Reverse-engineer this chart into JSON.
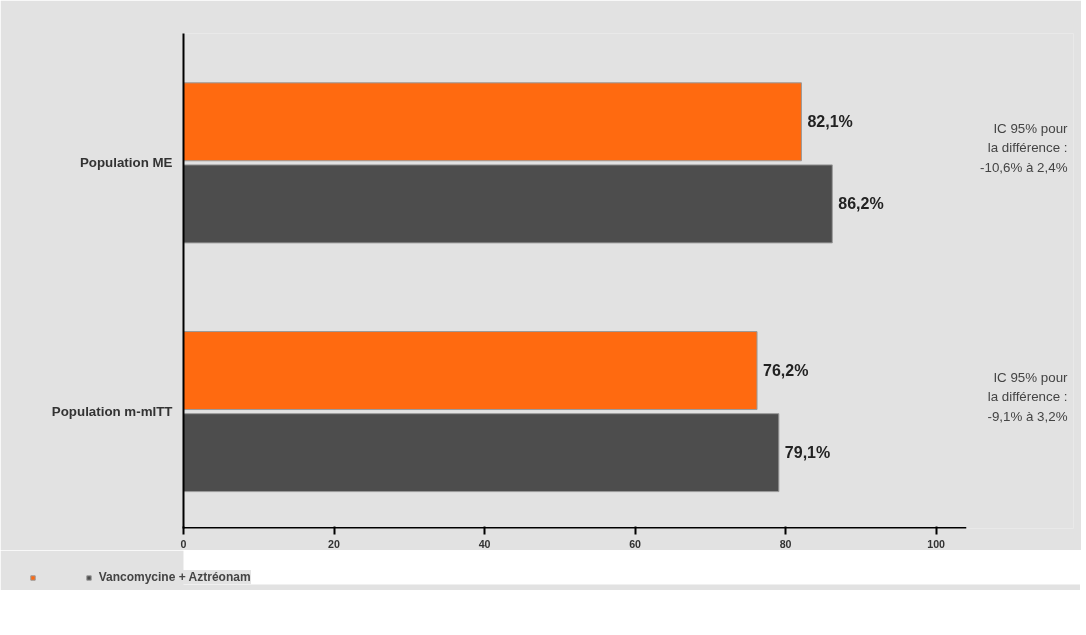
{
  "chart_data": {
    "type": "bar",
    "orientation": "horizontal",
    "categories": [
      "Population ME",
      "Population m-mITT"
    ],
    "series": [
      {
        "color": "#ff6a10",
        "values": [
          82.1,
          76.2
        ],
        "value_labels": [
          "82,1%",
          "76,2%"
        ]
      },
      {
        "name": "Vancomycine + Aztréonam",
        "color": "#4d4d4d",
        "values": [
          86.2,
          79.1
        ],
        "value_labels": [
          "86,2%",
          "79,1%"
        ]
      }
    ],
    "xlim": [
      0,
      104
    ],
    "xticks": [
      0,
      20,
      40,
      60,
      80,
      100
    ],
    "grid": false,
    "legend": "bottom",
    "annotations": [
      "IC 95% pour\nla différence :\n-10,6% à 2,4%",
      "IC 95% pour\nla différence :\n-9,1% à 3,2%"
    ]
  }
}
